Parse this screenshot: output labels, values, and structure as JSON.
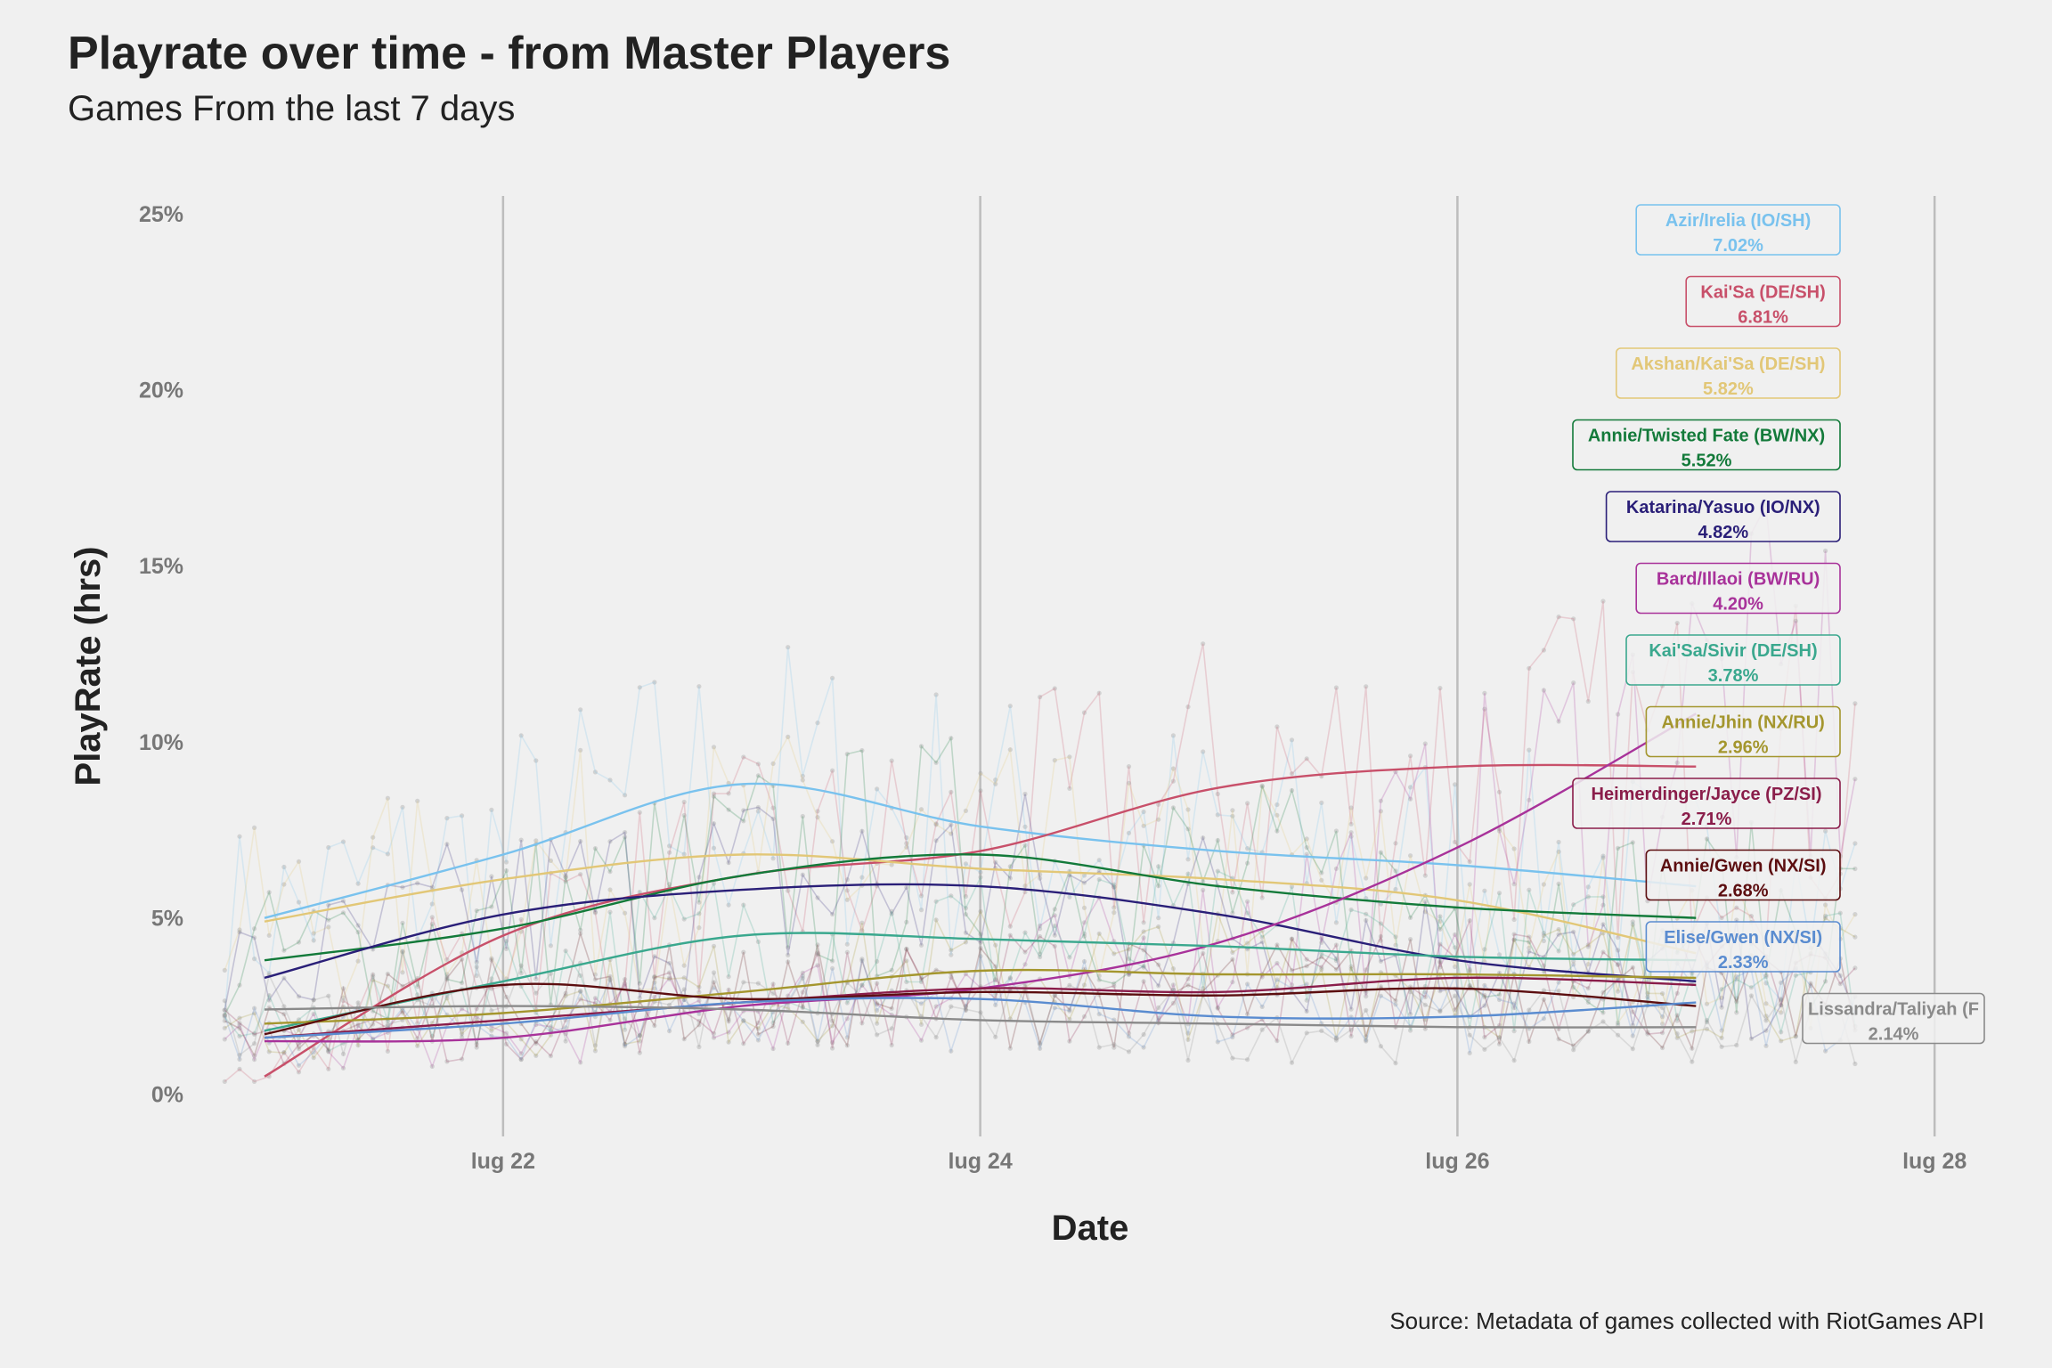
{
  "title": "Playrate over time - from Master Players",
  "subtitle": "Games From the last 7 days",
  "source": "Source: Metadata of games collected with RiotGames API",
  "chart_data": {
    "type": "line",
    "xlabel": "Date",
    "ylabel": "PlayRate (hrs)",
    "xlim": [
      "2022-07-20 18:00",
      "2022-07-28 05:00"
    ],
    "ylim": [
      -1,
      25.5
    ],
    "x_ticks": [
      {
        "date": "2022-07-22",
        "label": "lug 22"
      },
      {
        "date": "2022-07-24",
        "label": "lug 24"
      },
      {
        "date": "2022-07-26",
        "label": "lug 26"
      },
      {
        "date": "2022-07-28",
        "label": "lug 28"
      }
    ],
    "y_ticks": [
      {
        "value": 0,
        "label": "0%"
      },
      {
        "value": 5,
        "label": "5%"
      },
      {
        "value": 10,
        "label": "10%"
      },
      {
        "value": 15,
        "label": "15%"
      },
      {
        "value": 20,
        "label": "20%"
      },
      {
        "value": 25,
        "label": "25%"
      }
    ],
    "grid": "vertical major",
    "legend": "direct labels at right",
    "x": [
      "2022-07-21",
      "2022-07-22",
      "2022-07-23",
      "2022-07-24",
      "2022-07-25",
      "2022-07-26",
      "2022-07-27"
    ],
    "series": [
      {
        "name": "Azir/Irelia (IO/SH)",
        "value_label": "7.02%",
        "color": "#79c2ee",
        "values": [
          5.0,
          6.8,
          8.8,
          7.6,
          6.9,
          6.5,
          5.9
        ]
      },
      {
        "name": "Kai'Sa (DE/SH)",
        "value_label": "6.81%",
        "color": "#c8506a",
        "values": [
          0.5,
          4.5,
          6.2,
          6.9,
          8.7,
          9.3,
          9.3
        ]
      },
      {
        "name": "Akshan/Kai'Sa (DE/SH)",
        "value_label": "5.82%",
        "color": "#e2c777",
        "values": [
          4.9,
          6.1,
          6.8,
          6.4,
          6.1,
          5.5,
          4.0
        ]
      },
      {
        "name": "Annie/Twisted Fate (BW/NX)",
        "value_label": "5.52%",
        "color": "#137a3a",
        "values": [
          3.8,
          4.7,
          6.2,
          6.8,
          5.9,
          5.3,
          5.0
        ]
      },
      {
        "name": "Katarina/Yasuo (IO/NX)",
        "value_label": "4.82%",
        "color": "#2a1f78",
        "values": [
          3.3,
          5.1,
          5.8,
          5.9,
          5.1,
          3.8,
          3.2
        ]
      },
      {
        "name": "Bard/Illaoi (BW/RU)",
        "value_label": "4.20%",
        "color": "#a8329a",
        "values": [
          1.5,
          1.6,
          2.5,
          3.0,
          4.3,
          7.0,
          10.8
        ]
      },
      {
        "name": "Kai'Sa/Sivir (DE/SH)",
        "value_label": "3.78%",
        "color": "#3aa88e",
        "values": [
          1.8,
          3.2,
          4.5,
          4.4,
          4.2,
          3.9,
          3.8
        ]
      },
      {
        "name": "Annie/Jhin (NX/RU)",
        "value_label": "2.96%",
        "color": "#a4962e",
        "values": [
          2.0,
          2.3,
          2.9,
          3.5,
          3.4,
          3.4,
          3.3
        ]
      },
      {
        "name": "Heimerdinger/Jayce (PZ/SI)",
        "value_label": "2.71%",
        "color": "#8a1d4a",
        "values": [
          1.6,
          2.1,
          2.6,
          3.0,
          2.9,
          3.3,
          3.1
        ]
      },
      {
        "name": "Annie/Gwen (NX/SI)",
        "value_label": "2.68%",
        "color": "#5c0e10",
        "values": [
          1.7,
          3.1,
          2.7,
          2.9,
          2.8,
          3.0,
          2.5
        ]
      },
      {
        "name": "Elise/Gwen (NX/SI)",
        "value_label": "2.33%",
        "color": "#5a8cd0",
        "values": [
          1.6,
          2.0,
          2.6,
          2.7,
          2.2,
          2.2,
          2.6
        ]
      },
      {
        "name": "Lissandra/Taliyah (F",
        "value_label": "2.14%",
        "color": "#8a8a8a",
        "values": [
          2.4,
          2.5,
          2.4,
          2.1,
          2.0,
          1.9,
          1.9
        ]
      }
    ]
  }
}
